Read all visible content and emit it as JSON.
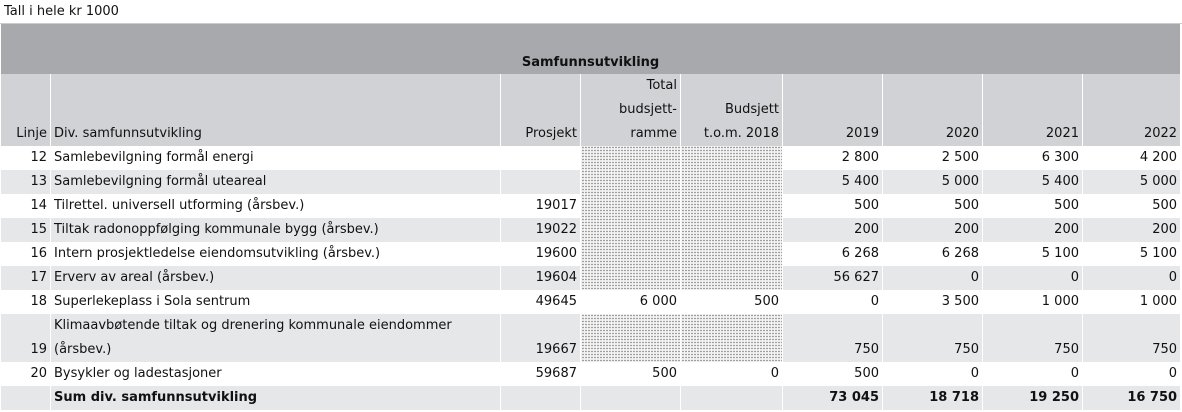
{
  "note": "Tall i hele kr 1000",
  "table": {
    "title": "Samfunnsutvikling",
    "header": [
      [
        "Linje"
      ],
      [
        "Div. samfunnsutvikling"
      ],
      [
        "Prosjekt"
      ],
      [
        "Total",
        "budsjett-",
        "ramme"
      ],
      [
        "Budsjett",
        "t.o.m. 2018"
      ],
      [
        "2019"
      ],
      [
        "2020"
      ],
      [
        "2021"
      ],
      [
        "2022"
      ]
    ],
    "rows": [
      [
        "12",
        "Samlebevilgning formål energi",
        null,
        null,
        null,
        "2 800",
        "2 500",
        "6 300",
        "4 200"
      ],
      [
        "13",
        "Samlebevilgning formål uteareal",
        null,
        null,
        null,
        "5 400",
        "5 000",
        "5 400",
        "5 000"
      ],
      [
        "14",
        "Tilrettel. universell utforming (årsbev.)",
        "19017",
        null,
        null,
        "500",
        "500",
        "500",
        "500"
      ],
      [
        "15",
        "Tiltak radonoppfølging kommunale bygg (årsbev.)",
        "19022",
        null,
        null,
        "200",
        "200",
        "200",
        "200"
      ],
      [
        "16",
        "Intern prosjektledelse eiendomsutvikling (årsbev.)",
        "19600",
        null,
        null,
        "6 268",
        "6 268",
        "5 100",
        "5 100"
      ],
      [
        "17",
        "Erverv av areal (årsbev.)",
        "19604",
        null,
        null,
        "56 627",
        "0",
        "0",
        "0"
      ],
      [
        "18",
        "Superlekeplass i Sola sentrum",
        "49645",
        "6 000",
        "500",
        "0",
        "3 500",
        "1 000",
        "1 000"
      ],
      [
        "19",
        "Klimaavbøtende tiltak og drenering kommunale eiendommer (årsbev.)",
        "19667",
        null,
        null,
        "750",
        "750",
        "750",
        "750"
      ],
      [
        "20",
        "Bysykler og ladestasjoner",
        "59687",
        "500",
        "0",
        "500",
        "0",
        "0",
        "0"
      ]
    ],
    "total": {
      "label": "Sum div. samfunnsutvikling",
      "values": [
        "73 045",
        "18 718",
        "19 250",
        "16 750"
      ]
    }
  }
}
